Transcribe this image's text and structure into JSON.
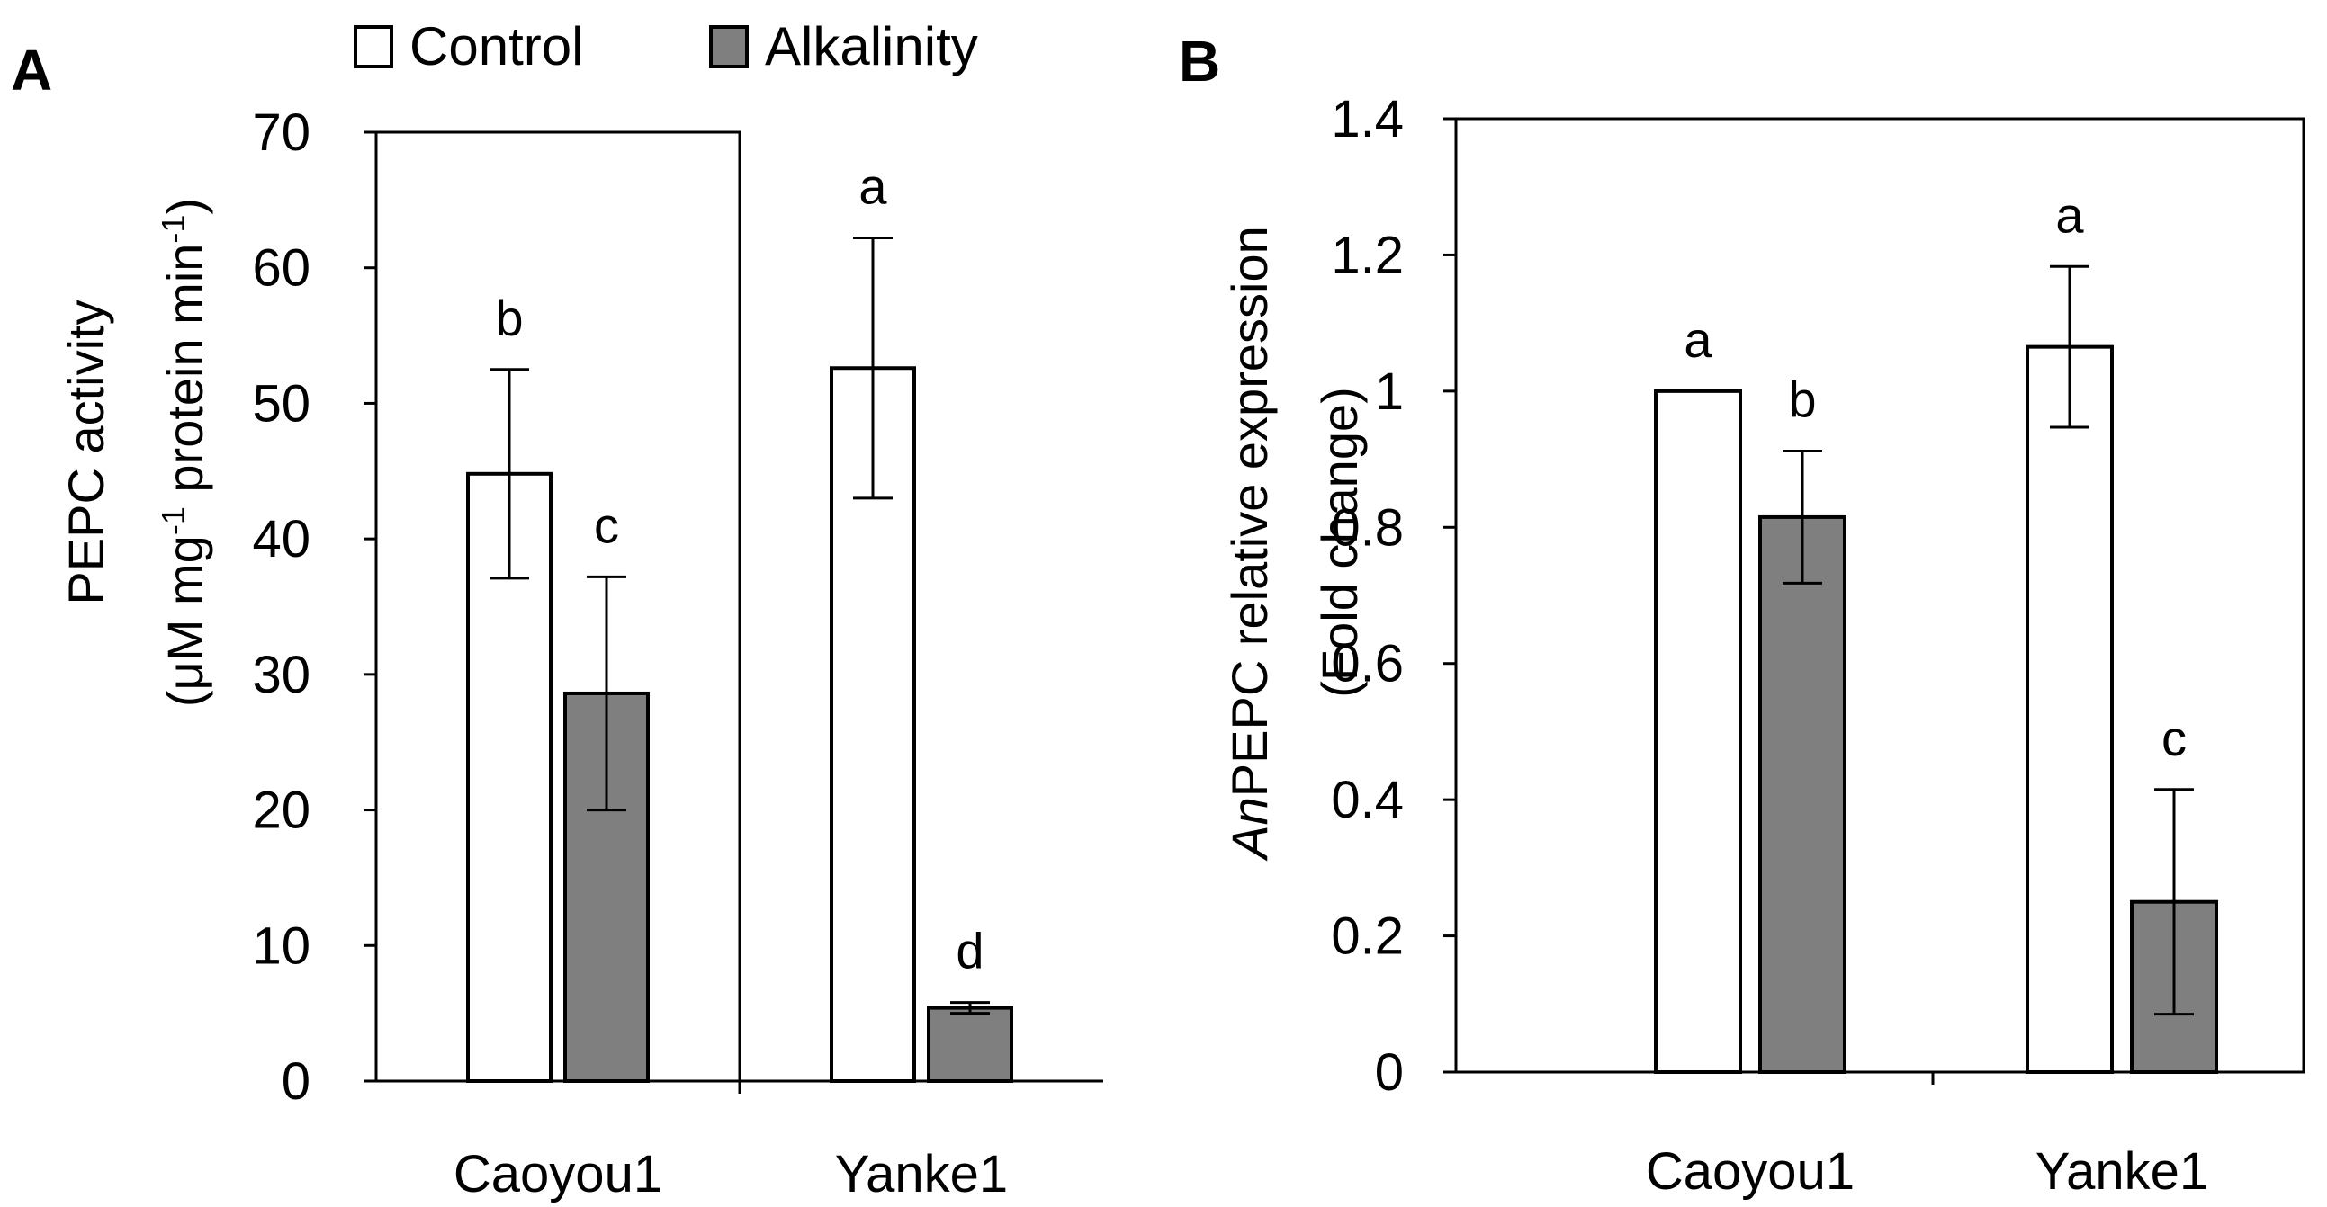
{
  "legend": [
    {
      "label": "Control",
      "color": "#ffffff"
    },
    {
      "label": "Alkalinity",
      "color": "#7f7f7f"
    }
  ],
  "chart_data": [
    {
      "panel": "A",
      "type": "bar",
      "title": "",
      "categories": [
        "Caoyou1",
        "Yanke1"
      ],
      "ylabel_line1": "PEPC activity",
      "ylabel_line2": {
        "pre": "(μM mg",
        "sup1": "-1",
        "mid": " protein min",
        "sup2": "-1",
        "post": ")"
      },
      "ylim": [
        0,
        70
      ],
      "yticks": [
        0,
        10,
        20,
        30,
        40,
        50,
        60,
        70
      ],
      "ytick_labels": [
        "0",
        "10",
        "20",
        "30",
        "40",
        "50",
        "60",
        "70"
      ],
      "series": [
        {
          "name": "Control",
          "color": "#ffffff",
          "values": [
            44.8,
            52.6
          ],
          "errors": [
            7.7,
            9.6
          ],
          "letters": [
            "b",
            "a"
          ]
        },
        {
          "name": "Alkalinity",
          "color": "#7f7f7f",
          "values": [
            28.6,
            5.4
          ],
          "errors": [
            8.6,
            0.4
          ],
          "letters": [
            "c",
            "d"
          ]
        }
      ]
    },
    {
      "panel": "B",
      "type": "bar",
      "title": "",
      "categories": [
        "Caoyou1",
        "Yanke1"
      ],
      "ylabel_line1": {
        "italic": "An",
        "rest": "PEPC relative expression"
      },
      "ylabel_line2": "(Fold change)",
      "ylim": [
        0,
        1.4
      ],
      "yticks": [
        0,
        0.2,
        0.4,
        0.6,
        0.8,
        1.0,
        1.2,
        1.4
      ],
      "ytick_labels": [
        "0",
        "0.2",
        "0.4",
        "0.6",
        "0.8",
        "1",
        "1.2",
        "1.4"
      ],
      "series": [
        {
          "name": "Control",
          "color": "#ffffff",
          "values": [
            1.0,
            1.065
          ],
          "errors": [
            0,
            0.118
          ],
          "letters": [
            "a",
            "a"
          ]
        },
        {
          "name": "Alkalinity",
          "color": "#7f7f7f",
          "values": [
            0.815,
            0.25
          ],
          "errors": [
            0.097,
            0.165
          ],
          "letters": [
            "b",
            "c"
          ]
        }
      ]
    }
  ]
}
